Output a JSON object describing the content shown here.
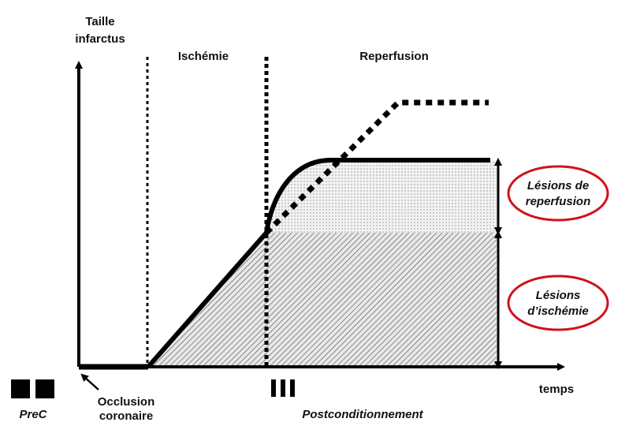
{
  "y_axis_label": [
    "Taille",
    "infarctus"
  ],
  "phases": [
    "Ischémie",
    "Reperfusion"
  ],
  "x_axis_label": "temps",
  "occlusion_label": [
    "Occlusion",
    "coronaire"
  ],
  "prec_label": "PreC",
  "postc_label": "Postconditionnement",
  "lesions": [
    [
      "Lésions de",
      "reperfusion"
    ],
    [
      "Lésions",
      "d’ischémie"
    ]
  ]
}
